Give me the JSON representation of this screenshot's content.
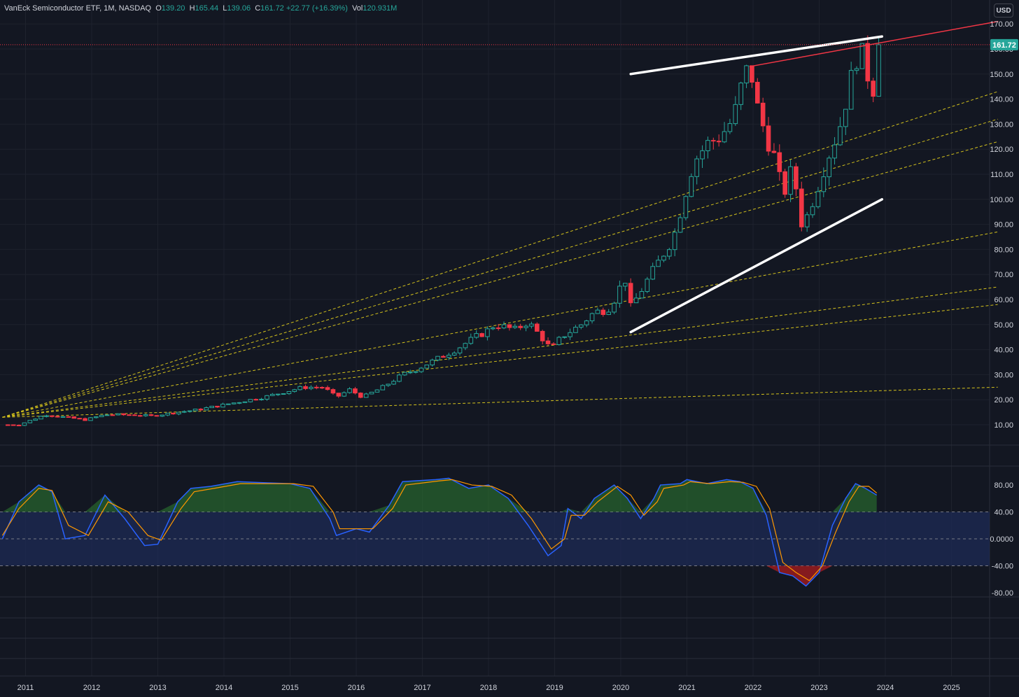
{
  "header": {
    "symbol": "VanEck Semiconductor ETF, 1M, NASDAQ",
    "open_label": "O",
    "open": "139.20",
    "high_label": "H",
    "high": "165.44",
    "low_label": "L",
    "low": "139.06",
    "close_label": "C",
    "close": "161.72",
    "change": "+22.77 (+16.39%)",
    "vol_label": "Vol",
    "vol": "120.931M"
  },
  "currency_button": "USD",
  "colors": {
    "background": "#131722",
    "up": "#26a69a",
    "down": "#f23645",
    "trendline_white": "#ffffff",
    "trendline_red": "#f23645",
    "fan_lines": "#d4c21c",
    "stoch_k": "#2962ff",
    "stoch_d": "#ff9800",
    "overbought_fill": "#2e7d32",
    "oversold_fill": "#b71c1c",
    "band_fill": "#1e2b55"
  },
  "chart_data": [
    {
      "type": "candlestick",
      "timeframe": "1M",
      "x_ticks": [
        "2011",
        "2012",
        "2013",
        "2014",
        "2015",
        "2016",
        "2017",
        "2018",
        "2019",
        "2020",
        "2021",
        "2022",
        "2023",
        "2024",
        "2025"
      ],
      "y_ticks": [
        "10.00",
        "20.00",
        "30.00",
        "40.00",
        "50.00",
        "60.00",
        "70.00",
        "80.00",
        "90.00",
        "100.00",
        "110.00",
        "120.00",
        "130.00",
        "140.00",
        "150.00",
        "160.00",
        "170.00"
      ],
      "ylim": [
        0,
        172
      ],
      "last_price": "161.72",
      "close_series": [
        {
          "year": 2010.9,
          "close": 10
        },
        {
          "year": 2011.3,
          "close": 14
        },
        {
          "year": 2011.6,
          "close": 13
        },
        {
          "year": 2011.9,
          "close": 12
        },
        {
          "year": 2012.2,
          "close": 14
        },
        {
          "year": 2012.6,
          "close": 14
        },
        {
          "year": 2012.9,
          "close": 13.5
        },
        {
          "year": 2013.3,
          "close": 15
        },
        {
          "year": 2013.6,
          "close": 16
        },
        {
          "year": 2013.9,
          "close": 17.5
        },
        {
          "year": 2014.2,
          "close": 19
        },
        {
          "year": 2014.6,
          "close": 21
        },
        {
          "year": 2014.9,
          "close": 23
        },
        {
          "year": 2015.2,
          "close": 25
        },
        {
          "year": 2015.5,
          "close": 25
        },
        {
          "year": 2015.7,
          "close": 21
        },
        {
          "year": 2015.9,
          "close": 24
        },
        {
          "year": 2016.1,
          "close": 21
        },
        {
          "year": 2016.4,
          "close": 25
        },
        {
          "year": 2016.7,
          "close": 30
        },
        {
          "year": 2016.9,
          "close": 32
        },
        {
          "year": 2017.2,
          "close": 36
        },
        {
          "year": 2017.5,
          "close": 40
        },
        {
          "year": 2017.8,
          "close": 45
        },
        {
          "year": 2017.95,
          "close": 47
        },
        {
          "year": 2018.1,
          "close": 50
        },
        {
          "year": 2018.4,
          "close": 48
        },
        {
          "year": 2018.6,
          "close": 51
        },
        {
          "year": 2018.8,
          "close": 45
        },
        {
          "year": 2018.95,
          "close": 40
        },
        {
          "year": 2019.1,
          "close": 45
        },
        {
          "year": 2019.4,
          "close": 50
        },
        {
          "year": 2019.6,
          "close": 55
        },
        {
          "year": 2019.8,
          "close": 56
        },
        {
          "year": 2019.95,
          "close": 62
        },
        {
          "year": 2020.05,
          "close": 70
        },
        {
          "year": 2020.15,
          "close": 57
        },
        {
          "year": 2020.25,
          "close": 61
        },
        {
          "year": 2020.5,
          "close": 72
        },
        {
          "year": 2020.8,
          "close": 85
        },
        {
          "year": 2020.95,
          "close": 100
        },
        {
          "year": 2021.1,
          "close": 115
        },
        {
          "year": 2021.3,
          "close": 122
        },
        {
          "year": 2021.5,
          "close": 125
        },
        {
          "year": 2021.7,
          "close": 132
        },
        {
          "year": 2021.85,
          "close": 148
        },
        {
          "year": 2021.95,
          "close": 154
        },
        {
          "year": 2022.05,
          "close": 138
        },
        {
          "year": 2022.2,
          "close": 125
        },
        {
          "year": 2022.35,
          "close": 115
        },
        {
          "year": 2022.45,
          "close": 101
        },
        {
          "year": 2022.6,
          "close": 113
        },
        {
          "year": 2022.75,
          "close": 88
        },
        {
          "year": 2022.85,
          "close": 96
        },
        {
          "year": 2022.95,
          "close": 103
        },
        {
          "year": 2023.1,
          "close": 115
        },
        {
          "year": 2023.3,
          "close": 128
        },
        {
          "year": 2023.5,
          "close": 150
        },
        {
          "year": 2023.6,
          "close": 160
        },
        {
          "year": 2023.7,
          "close": 155
        },
        {
          "year": 2023.75,
          "close": 147
        },
        {
          "year": 2023.8,
          "close": 139
        },
        {
          "year": 2023.87,
          "close": 161.72
        }
      ],
      "trendlines": [
        {
          "name": "upper-white",
          "color": "white",
          "from": {
            "year": 2020.15,
            "value": 150
          },
          "to": {
            "year": 2023.95,
            "value": 165
          }
        },
        {
          "name": "lower-white",
          "color": "white",
          "from": {
            "year": 2020.15,
            "value": 47
          },
          "to": {
            "year": 2023.95,
            "value": 100
          }
        },
        {
          "name": "red-resistance",
          "color": "red",
          "from": {
            "year": 2021.95,
            "value": 153
          },
          "to": {
            "year": 2025.7,
            "value": 171
          }
        }
      ],
      "fan_lines": [
        {
          "from": {
            "year": 2010.65,
            "value": 13
          },
          "to": {
            "year": 2025.7,
            "value": 143
          }
        },
        {
          "from": {
            "year": 2010.65,
            "value": 13
          },
          "to": {
            "year": 2025.7,
            "value": 132
          }
        },
        {
          "from": {
            "year": 2010.65,
            "value": 13
          },
          "to": {
            "year": 2025.7,
            "value": 123
          }
        },
        {
          "from": {
            "year": 2010.65,
            "value": 13
          },
          "to": {
            "year": 2025.7,
            "value": 87
          }
        },
        {
          "from": {
            "year": 2010.65,
            "value": 13
          },
          "to": {
            "year": 2025.7,
            "value": 65
          }
        },
        {
          "from": {
            "year": 2010.65,
            "value": 13
          },
          "to": {
            "year": 2025.7,
            "value": 58
          }
        },
        {
          "from": {
            "year": 2010.65,
            "value": 13
          },
          "to": {
            "year": 2025.7,
            "value": 25
          }
        }
      ]
    },
    {
      "type": "line",
      "name": "stochastic-rsi",
      "y_ticks": [
        "80.00",
        "40.00",
        "0.0000",
        "-40.00",
        "-80.00"
      ],
      "ylim": [
        -88,
        95
      ],
      "bands": {
        "upper": 40,
        "middle": 0,
        "lower": -40
      },
      "k_series": [
        {
          "year": 2010.65,
          "value": 0
        },
        {
          "year": 2010.9,
          "value": 55
        },
        {
          "year": 2011.2,
          "value": 80
        },
        {
          "year": 2011.4,
          "value": 70
        },
        {
          "year": 2011.6,
          "value": 0
        },
        {
          "year": 2011.9,
          "value": 5
        },
        {
          "year": 2012.2,
          "value": 65
        },
        {
          "year": 2012.5,
          "value": 30
        },
        {
          "year": 2012.8,
          "value": -10
        },
        {
          "year": 2013.0,
          "value": -8
        },
        {
          "year": 2013.3,
          "value": 55
        },
        {
          "year": 2013.5,
          "value": 75
        },
        {
          "year": 2013.8,
          "value": 78
        },
        {
          "year": 2014.2,
          "value": 85
        },
        {
          "year": 2014.7,
          "value": 83
        },
        {
          "year": 2015.0,
          "value": 82
        },
        {
          "year": 2015.3,
          "value": 75
        },
        {
          "year": 2015.6,
          "value": 30
        },
        {
          "year": 2015.7,
          "value": 5
        },
        {
          "year": 2016.0,
          "value": 15
        },
        {
          "year": 2016.2,
          "value": 10
        },
        {
          "year": 2016.5,
          "value": 50
        },
        {
          "year": 2016.7,
          "value": 85
        },
        {
          "year": 2017.2,
          "value": 88
        },
        {
          "year": 2017.4,
          "value": 90
        },
        {
          "year": 2017.7,
          "value": 75
        },
        {
          "year": 2018.0,
          "value": 80
        },
        {
          "year": 2018.3,
          "value": 60
        },
        {
          "year": 2018.6,
          "value": 20
        },
        {
          "year": 2018.9,
          "value": -25
        },
        {
          "year": 2019.1,
          "value": -10
        },
        {
          "year": 2019.2,
          "value": 45
        },
        {
          "year": 2019.4,
          "value": 30
        },
        {
          "year": 2019.6,
          "value": 60
        },
        {
          "year": 2019.9,
          "value": 80
        },
        {
          "year": 2020.1,
          "value": 60
        },
        {
          "year": 2020.3,
          "value": 30
        },
        {
          "year": 2020.5,
          "value": 60
        },
        {
          "year": 2020.6,
          "value": 80
        },
        {
          "year": 2020.9,
          "value": 82
        },
        {
          "year": 2021.0,
          "value": 88
        },
        {
          "year": 2021.3,
          "value": 82
        },
        {
          "year": 2021.6,
          "value": 88
        },
        {
          "year": 2021.8,
          "value": 85
        },
        {
          "year": 2022.0,
          "value": 75
        },
        {
          "year": 2022.2,
          "value": 35
        },
        {
          "year": 2022.4,
          "value": -50
        },
        {
          "year": 2022.6,
          "value": -55
        },
        {
          "year": 2022.8,
          "value": -70
        },
        {
          "year": 2023.0,
          "value": -50
        },
        {
          "year": 2023.2,
          "value": 20
        },
        {
          "year": 2023.4,
          "value": 60
        },
        {
          "year": 2023.55,
          "value": 82
        },
        {
          "year": 2023.7,
          "value": 75
        },
        {
          "year": 2023.87,
          "value": 65
        }
      ],
      "d_series": [
        {
          "year": 2010.65,
          "value": 5
        },
        {
          "year": 2010.9,
          "value": 45
        },
        {
          "year": 2011.2,
          "value": 75
        },
        {
          "year": 2011.4,
          "value": 72
        },
        {
          "year": 2011.65,
          "value": 20
        },
        {
          "year": 2011.95,
          "value": 5
        },
        {
          "year": 2012.25,
          "value": 55
        },
        {
          "year": 2012.55,
          "value": 40
        },
        {
          "year": 2012.85,
          "value": 5
        },
        {
          "year": 2013.05,
          "value": -2
        },
        {
          "year": 2013.35,
          "value": 45
        },
        {
          "year": 2013.55,
          "value": 70
        },
        {
          "year": 2013.85,
          "value": 75
        },
        {
          "year": 2014.25,
          "value": 82
        },
        {
          "year": 2014.75,
          "value": 82
        },
        {
          "year": 2015.05,
          "value": 82
        },
        {
          "year": 2015.35,
          "value": 78
        },
        {
          "year": 2015.65,
          "value": 40
        },
        {
          "year": 2015.75,
          "value": 15
        },
        {
          "year": 2016.05,
          "value": 15
        },
        {
          "year": 2016.25,
          "value": 15
        },
        {
          "year": 2016.55,
          "value": 45
        },
        {
          "year": 2016.75,
          "value": 80
        },
        {
          "year": 2017.25,
          "value": 86
        },
        {
          "year": 2017.45,
          "value": 88
        },
        {
          "year": 2017.75,
          "value": 80
        },
        {
          "year": 2018.05,
          "value": 78
        },
        {
          "year": 2018.35,
          "value": 65
        },
        {
          "year": 2018.65,
          "value": 30
        },
        {
          "year": 2018.95,
          "value": -15
        },
        {
          "year": 2019.15,
          "value": 0
        },
        {
          "year": 2019.25,
          "value": 35
        },
        {
          "year": 2019.45,
          "value": 35
        },
        {
          "year": 2019.65,
          "value": 55
        },
        {
          "year": 2019.95,
          "value": 78
        },
        {
          "year": 2020.15,
          "value": 65
        },
        {
          "year": 2020.35,
          "value": 35
        },
        {
          "year": 2020.55,
          "value": 55
        },
        {
          "year": 2020.65,
          "value": 75
        },
        {
          "year": 2020.95,
          "value": 80
        },
        {
          "year": 2021.05,
          "value": 85
        },
        {
          "year": 2021.35,
          "value": 82
        },
        {
          "year": 2021.65,
          "value": 85
        },
        {
          "year": 2021.85,
          "value": 84
        },
        {
          "year": 2022.05,
          "value": 78
        },
        {
          "year": 2022.25,
          "value": 45
        },
        {
          "year": 2022.45,
          "value": -35
        },
        {
          "year": 2022.65,
          "value": -50
        },
        {
          "year": 2022.85,
          "value": -62
        },
        {
          "year": 2023.05,
          "value": -40
        },
        {
          "year": 2023.25,
          "value": 10
        },
        {
          "year": 2023.45,
          "value": 55
        },
        {
          "year": 2023.6,
          "value": 78
        },
        {
          "year": 2023.75,
          "value": 78
        },
        {
          "year": 2023.87,
          "value": 68
        }
      ]
    }
  ]
}
